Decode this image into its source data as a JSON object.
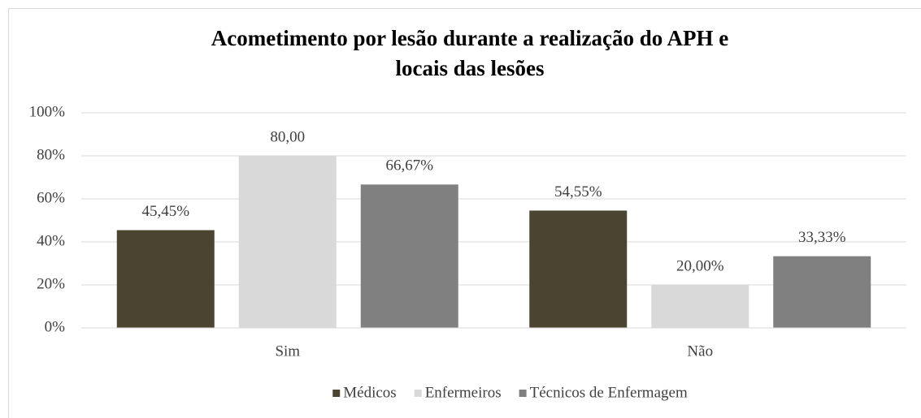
{
  "chart_data": {
    "type": "bar",
    "title": [
      "Acometimento  por lesão durante  a realização do APH  e",
      "locais das lesões"
    ],
    "categories": [
      "Sim",
      "Não"
    ],
    "series": [
      {
        "name": "Médicos",
        "color": "#4a4430",
        "values": [
          45.45,
          54.55
        ],
        "value_labels": [
          "45,45%",
          "54,55%"
        ]
      },
      {
        "name": "Enfermeiros",
        "color": "#d9d9d9",
        "values": [
          80,
          20
        ],
        "value_labels": [
          "80,00",
          "20,00%"
        ]
      },
      {
        "name": "Técnicos de Enfermagem",
        "color": "#808080",
        "values": [
          66.67,
          33.33
        ],
        "value_labels": [
          "66,67%",
          "33,33%"
        ]
      }
    ],
    "ylim": [
      0,
      100
    ],
    "yticks": [
      {
        "value": 0,
        "label": "0%"
      },
      {
        "value": 20,
        "label": "20%"
      },
      {
        "value": 40,
        "label": "40%"
      },
      {
        "value": 60,
        "label": "60%"
      },
      {
        "value": 80,
        "label": "80%"
      },
      {
        "value": 100,
        "label": "100%"
      }
    ],
    "grid": true,
    "legend": "bottom"
  }
}
